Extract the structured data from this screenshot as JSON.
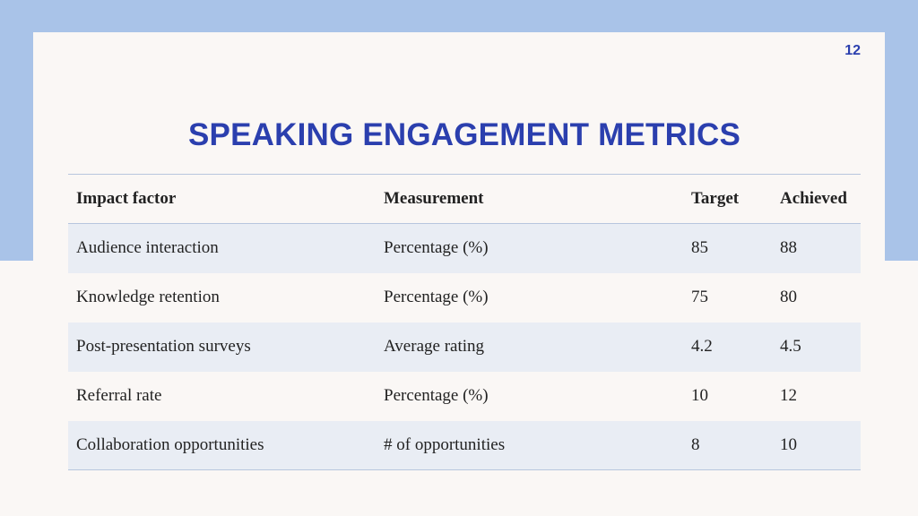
{
  "slide": {
    "page_number": "12",
    "title": "SPEAKING ENGAGEMENT METRICS"
  },
  "table": {
    "headers": [
      "Impact factor",
      "Measurement",
      "Target",
      "Achieved"
    ],
    "rows": [
      [
        "Audience interaction",
        "Percentage (%)",
        "85",
        "88"
      ],
      [
        "Knowledge retention",
        "Percentage (%)",
        "75",
        "80"
      ],
      [
        "Post-presentation surveys",
        "Average rating",
        "4.2",
        "4.5"
      ],
      [
        "Referral rate",
        "Percentage (%)",
        "10",
        "12"
      ],
      [
        "Collaboration opportunities",
        "# of opportunities",
        "8",
        "10"
      ]
    ]
  },
  "colors": {
    "accent": "#2b3fae",
    "band": "#a9c3e8",
    "row_stripe": "#e9edf4",
    "background": "#faf7f5"
  }
}
